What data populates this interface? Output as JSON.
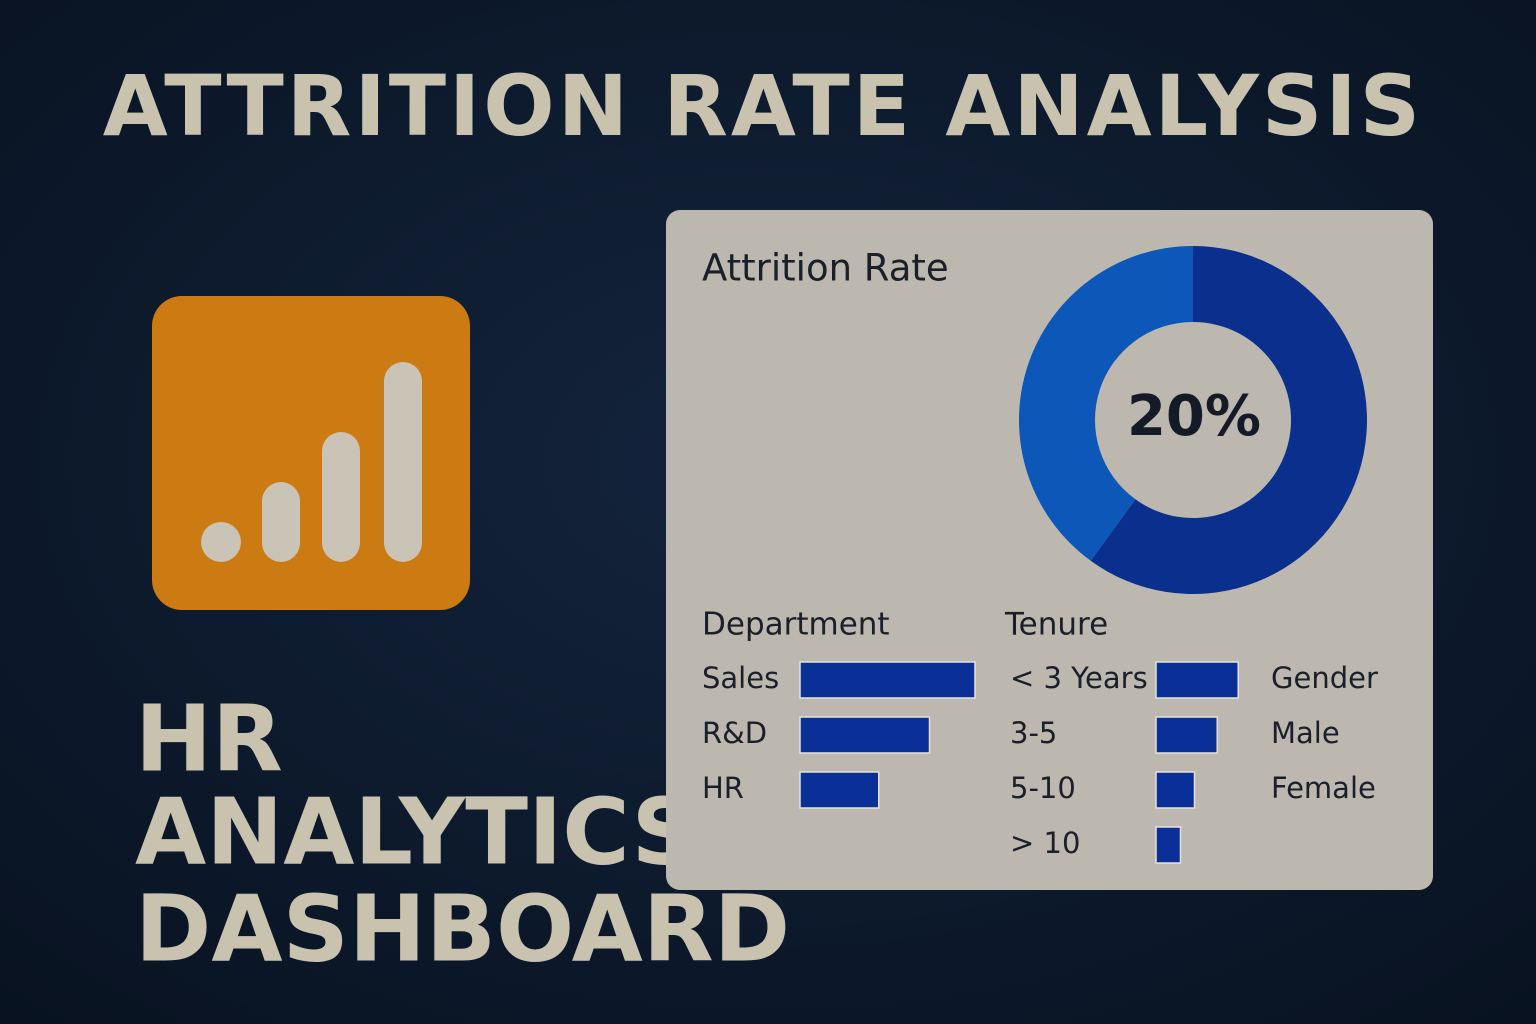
{
  "header": {
    "title": "ATTRITION RATE ANALYSIS"
  },
  "brand": {
    "lines": [
      "HR",
      "ANALYTICS",
      "DASHBOARD"
    ]
  },
  "card": {
    "title": "Attrition Rate",
    "donut": {
      "values": [
        60,
        40
      ],
      "colors": [
        "#0b2f8c",
        "#0d57b9"
      ],
      "center_label": "20%"
    },
    "department": {
      "type": "bar",
      "title": "Department",
      "categories": [
        "Sales",
        "R&D",
        "HR"
      ],
      "values": [
        100,
        74,
        45
      ],
      "xlim": [
        0,
        100
      ],
      "color": "#0a2f96"
    },
    "tenure": {
      "type": "bar",
      "title": "Tenure",
      "categories": [
        "< 3 Years",
        "3-5",
        "5-10",
        "> 10"
      ],
      "values": [
        47,
        35,
        22,
        14
      ],
      "xlim": [
        0,
        100
      ],
      "color": "#0a2f96"
    },
    "gender": {
      "title": "Gender",
      "items": [
        "Male",
        "Female"
      ]
    }
  }
}
